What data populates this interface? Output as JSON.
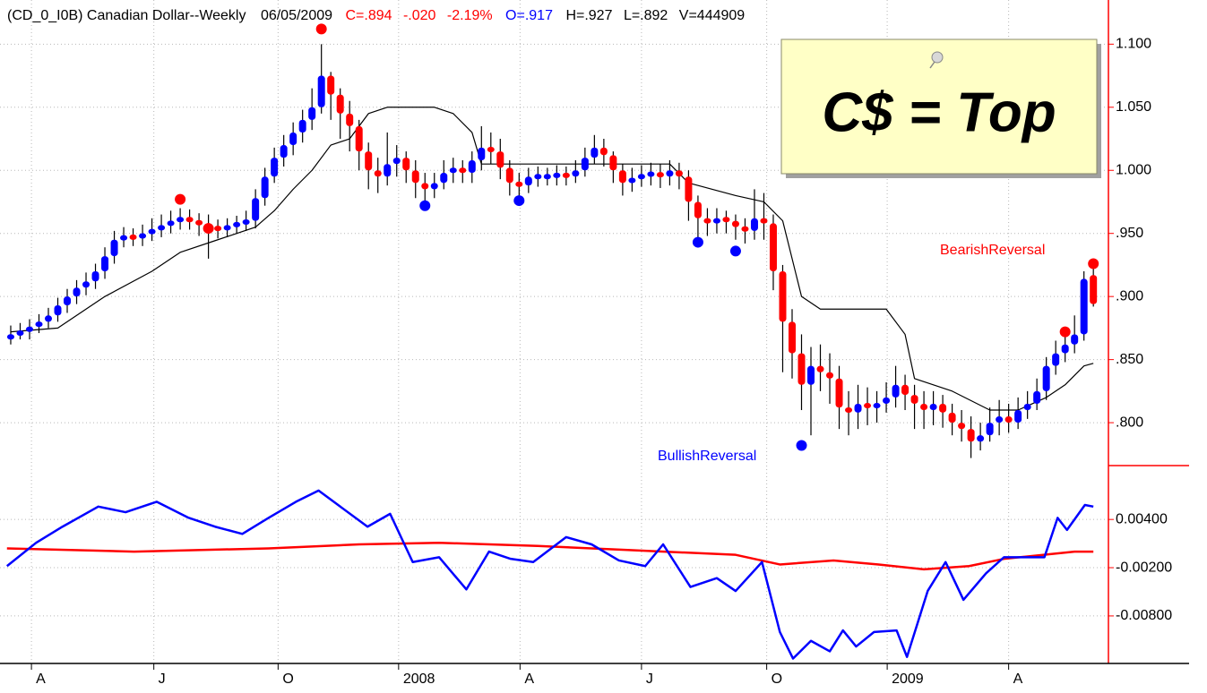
{
  "header": {
    "title": "(CD_0_I0B) Canadian Dollar--Weekly",
    "date": "06/05/2009",
    "close": "C=.894",
    "change": "-.020",
    "change_pct": "-2.19%",
    "open": "O=.917",
    "high": "H=.927",
    "low": "L=.892",
    "volume": "V=444909"
  },
  "callout": "C$ = Top",
  "chart_data": [
    {
      "type": "candlestick",
      "up_color": "#0000ff",
      "down_color": "#ff0000",
      "wick_color": "#000000",
      "xlim": [
        -1.14,
        116.6
      ],
      "ylim": [
        0.766,
        1.135
      ],
      "yticks": [
        {
          "value": 0.8,
          "label": ".800"
        },
        {
          "value": 0.85,
          "label": ".850"
        },
        {
          "value": 0.9,
          "label": ".900"
        },
        {
          "value": 0.95,
          "label": ".950"
        },
        {
          "value": 1.0,
          "label": "1.000"
        },
        {
          "value": 1.05,
          "label": "1.050"
        },
        {
          "value": 1.1,
          "label": "1.100"
        }
      ],
      "xticks": [
        {
          "value": 2.2,
          "label": "A"
        },
        {
          "value": 15.2,
          "label": "J"
        },
        {
          "value": 28.4,
          "label": "O"
        },
        {
          "value": 41.2,
          "label": "2008"
        },
        {
          "value": 54.1,
          "label": "A"
        },
        {
          "value": 67,
          "label": "J"
        },
        {
          "value": 80.3,
          "label": "O"
        },
        {
          "value": 93.1,
          "label": "2009"
        },
        {
          "value": 106,
          "label": "A"
        }
      ],
      "grid": true,
      "open": [
        0.866,
        0.87,
        0.872,
        0.876,
        0.88,
        0.885,
        0.893,
        0.9,
        0.907,
        0.912,
        0.92,
        0.932,
        0.945,
        0.948,
        0.946,
        0.95,
        0.953,
        0.956,
        0.96,
        0.962,
        0.96,
        0.957,
        0.955,
        0.953,
        0.956,
        0.958,
        0.96,
        0.978,
        0.995,
        1.01,
        1.02,
        1.03,
        1.04,
        1.05,
        1.075,
        1.06,
        1.045,
        1.035,
        1.015,
        1.0,
        0.995,
        1.005,
        1.01,
        1.0,
        0.99,
        0.985,
        0.99,
        0.998,
        1.002,
        0.998,
        1.008,
        1.018,
        1.015,
        1.002,
        0.99,
        0.988,
        0.995,
        0.995,
        0.995,
        0.997,
        0.995,
        1.0,
        1.01,
        1.018,
        1.012,
        1.0,
        0.99,
        0.994,
        0.996,
        0.998,
        0.995,
        1.0,
        0.995,
        0.975,
        0.962,
        0.958,
        0.962,
        0.96,
        0.955,
        0.952,
        0.962,
        0.958,
        0.92,
        0.88,
        0.855,
        0.83,
        0.845,
        0.84,
        0.835,
        0.812,
        0.808,
        0.815,
        0.812,
        0.815,
        0.82,
        0.83,
        0.822,
        0.815,
        0.81,
        0.815,
        0.808,
        0.8,
        0.795,
        0.785,
        0.79,
        0.8,
        0.805,
        0.8,
        0.81,
        0.815,
        0.825,
        0.845,
        0.855,
        0.862,
        0.87,
        0.917
      ],
      "high": [
        0.877,
        0.879,
        0.882,
        0.886,
        0.891,
        0.899,
        0.906,
        0.913,
        0.919,
        0.926,
        0.939,
        0.952,
        0.955,
        0.954,
        0.957,
        0.962,
        0.965,
        0.968,
        0.97,
        0.969,
        0.966,
        0.965,
        0.961,
        0.962,
        0.964,
        0.968,
        0.985,
        1.002,
        1.018,
        1.028,
        1.038,
        1.048,
        1.065,
        1.1,
        1.078,
        1.065,
        1.055,
        1.04,
        1.022,
        1.01,
        1.03,
        1.02,
        1.015,
        1.008,
        0.998,
        0.998,
        1.008,
        1.01,
        1.008,
        1.015,
        1.035,
        1.03,
        1.025,
        1.008,
        0.998,
        1.002,
        1.003,
        1.002,
        1.004,
        1.003,
        1.008,
        1.018,
        1.028,
        1.025,
        1.015,
        1.005,
        1.002,
        1.004,
        1.006,
        1.005,
        1.008,
        1.006,
        1.0,
        0.98,
        0.97,
        0.97,
        0.968,
        0.965,
        0.962,
        0.985,
        0.982,
        0.965,
        0.925,
        0.89,
        0.87,
        0.86,
        0.862,
        0.855,
        0.845,
        0.825,
        0.83,
        0.828,
        0.825,
        0.832,
        0.845,
        0.838,
        0.83,
        0.825,
        0.825,
        0.822,
        0.815,
        0.81,
        0.805,
        0.8,
        0.812,
        0.818,
        0.815,
        0.82,
        0.825,
        0.835,
        0.852,
        0.865,
        0.875,
        0.885,
        0.92,
        0.927
      ],
      "low": [
        0.862,
        0.866,
        0.866,
        0.871,
        0.875,
        0.88,
        0.887,
        0.894,
        0.901,
        0.906,
        0.914,
        0.926,
        0.939,
        0.94,
        0.94,
        0.944,
        0.947,
        0.95,
        0.953,
        0.953,
        0.948,
        0.93,
        0.946,
        0.947,
        0.95,
        0.952,
        0.954,
        0.972,
        0.99,
        1.003,
        1.012,
        1.022,
        1.032,
        1.045,
        1.04,
        1.025,
        1.015,
        1.0,
        0.985,
        0.982,
        0.988,
        0.995,
        0.99,
        0.978,
        0.972,
        0.978,
        0.985,
        0.99,
        0.99,
        0.99,
        1.0,
        1.005,
        0.993,
        0.98,
        0.978,
        0.982,
        0.987,
        0.988,
        0.988,
        0.988,
        0.99,
        0.995,
        1.005,
        1.003,
        0.99,
        0.98,
        0.983,
        0.987,
        0.988,
        0.986,
        0.988,
        0.985,
        0.96,
        0.945,
        0.948,
        0.95,
        0.95,
        0.945,
        0.942,
        0.945,
        0.945,
        0.905,
        0.84,
        0.835,
        0.81,
        0.79,
        0.825,
        0.815,
        0.795,
        0.79,
        0.795,
        0.798,
        0.8,
        0.808,
        0.812,
        0.81,
        0.795,
        0.795,
        0.798,
        0.796,
        0.79,
        0.785,
        0.772,
        0.778,
        0.785,
        0.79,
        0.792,
        0.795,
        0.803,
        0.81,
        0.818,
        0.838,
        0.848,
        0.855,
        0.865,
        0.892
      ],
      "close": [
        0.87,
        0.872,
        0.876,
        0.88,
        0.885,
        0.893,
        0.9,
        0.907,
        0.912,
        0.92,
        0.932,
        0.945,
        0.948,
        0.946,
        0.95,
        0.953,
        0.956,
        0.96,
        0.962,
        0.96,
        0.957,
        0.955,
        0.953,
        0.956,
        0.958,
        0.96,
        0.978,
        0.995,
        1.01,
        1.02,
        1.03,
        1.04,
        1.05,
        1.075,
        1.06,
        1.045,
        1.035,
        1.015,
        1.0,
        0.995,
        1.005,
        1.01,
        1.0,
        0.99,
        0.985,
        0.99,
        0.998,
        1.002,
        0.998,
        1.008,
        1.018,
        1.015,
        1.002,
        0.99,
        0.988,
        0.995,
        0.995,
        0.995,
        0.997,
        0.995,
        1.0,
        1.01,
        1.018,
        1.012,
        1.0,
        0.99,
        0.994,
        0.996,
        0.998,
        0.995,
        1.0,
        0.995,
        0.975,
        0.962,
        0.958,
        0.962,
        0.96,
        0.955,
        0.952,
        0.962,
        0.958,
        0.92,
        0.88,
        0.855,
        0.83,
        0.845,
        0.84,
        0.835,
        0.812,
        0.808,
        0.815,
        0.812,
        0.815,
        0.82,
        0.83,
        0.822,
        0.815,
        0.81,
        0.815,
        0.808,
        0.8,
        0.795,
        0.785,
        0.79,
        0.8,
        0.805,
        0.8,
        0.81,
        0.815,
        0.825,
        0.845,
        0.855,
        0.862,
        0.87,
        0.914,
        0.894
      ],
      "line": {
        "color": "#000000",
        "x": [
          0,
          5,
          10,
          15,
          18,
          22,
          26,
          28,
          30,
          32,
          34,
          36,
          38,
          40,
          45,
          47,
          49,
          50,
          70,
          72,
          77,
          80,
          82,
          83,
          84,
          86,
          93,
          95,
          96,
          100,
          104,
          107,
          110,
          112,
          114,
          115
        ],
        "values": [
          0.872,
          0.875,
          0.9,
          0.92,
          0.935,
          0.945,
          0.955,
          0.968,
          0.985,
          1.0,
          1.02,
          1.025,
          1.045,
          1.05,
          1.05,
          1.045,
          1.03,
          1.005,
          1.005,
          0.99,
          0.98,
          0.975,
          0.96,
          0.93,
          0.9,
          0.89,
          0.89,
          0.87,
          0.835,
          0.825,
          0.81,
          0.81,
          0.82,
          0.83,
          0.845,
          0.847
        ]
      },
      "markers": {
        "x": [
          33,
          18,
          21,
          112,
          115,
          44,
          54,
          73,
          77,
          84
        ],
        "values": [
          1.112,
          0.977,
          0.954,
          0.872,
          0.926,
          0.972,
          0.976,
          0.943,
          0.936,
          0.782
        ],
        "colors": [
          "#ff0000",
          "#ff0000",
          "#ff0000",
          "#ff0000",
          "#ff0000",
          "#0000ff",
          "#0000ff",
          "#0000ff",
          "#0000ff",
          "#0000ff"
        ]
      },
      "annotations": [
        {
          "text": "BullishReversal",
          "color": "#0000ff"
        },
        {
          "text": "BearishReversal",
          "color": "#ff0000"
        }
      ]
    },
    {
      "type": "line",
      "xlim": [
        -1.14,
        116.6
      ],
      "ylim": [
        -0.0138,
        0.0107
      ],
      "yticks": [
        {
          "value": -0.008,
          "label": "-0.00800"
        },
        {
          "value": -0.002,
          "label": "-0.00200"
        },
        {
          "value": 0.004,
          "label": "0.00400"
        }
      ],
      "grid": true,
      "series": [
        {
          "color": "#ff0000",
          "x": [
            -0.4,
            13.1,
            27.4,
            37,
            45.5,
            56,
            65.5,
            77,
            81.7,
            87.4,
            92.2,
            97,
            101.8,
            105.5,
            113,
            115
          ],
          "values": [
            0.0004,
            0,
            0.0004,
            0.0009,
            0.0011,
            0.0007,
            0.0002,
            -0.0004,
            -0.0016,
            -0.0011,
            -0.0016,
            -0.0022,
            -0.0018,
            -0.0009,
            0,
            0
          ]
        },
        {
          "color": "#0000ff",
          "x": [
            -0.4,
            2.7,
            5.5,
            9.3,
            12.2,
            15.5,
            18.9,
            21.7,
            24.6,
            27.4,
            30.3,
            32.7,
            35,
            37.9,
            40.3,
            42.7,
            45.5,
            48.4,
            50.8,
            53.1,
            55.5,
            59,
            61.7,
            64.6,
            67.4,
            69.3,
            72.2,
            75,
            77,
            79.8,
            81.7,
            83.1,
            85,
            87,
            88.4,
            89.8,
            91.7,
            94.1,
            95.2,
            97.4,
            99.3,
            101.2,
            103.6,
            105.5,
            109.8,
            111.2,
            112.2,
            114.1,
            115
          ],
          "values": [
            -0.0018,
            0.0011,
            0.0031,
            0.0056,
            0.0049,
            0.0062,
            0.0042,
            0.0031,
            0.0022,
            0.0042,
            0.0062,
            0.0076,
            0.0056,
            0.0031,
            0.0047,
            -0.0013,
            -0.0007,
            -0.0047,
            0,
            -0.0009,
            -0.0013,
            0.0018,
            0.0009,
            -0.0011,
            -0.0018,
            0.0009,
            -0.0044,
            -0.0033,
            -0.0049,
            -0.0013,
            -0.01,
            -0.0133,
            -0.0111,
            -0.0124,
            -0.0098,
            -0.0118,
            -0.01,
            -0.0098,
            -0.0131,
            -0.0049,
            -0.0013,
            -0.006,
            -0.0027,
            -0.0007,
            -0.0007,
            0.0042,
            0.0027,
            0.0058,
            0.0056
          ]
        }
      ]
    }
  ]
}
